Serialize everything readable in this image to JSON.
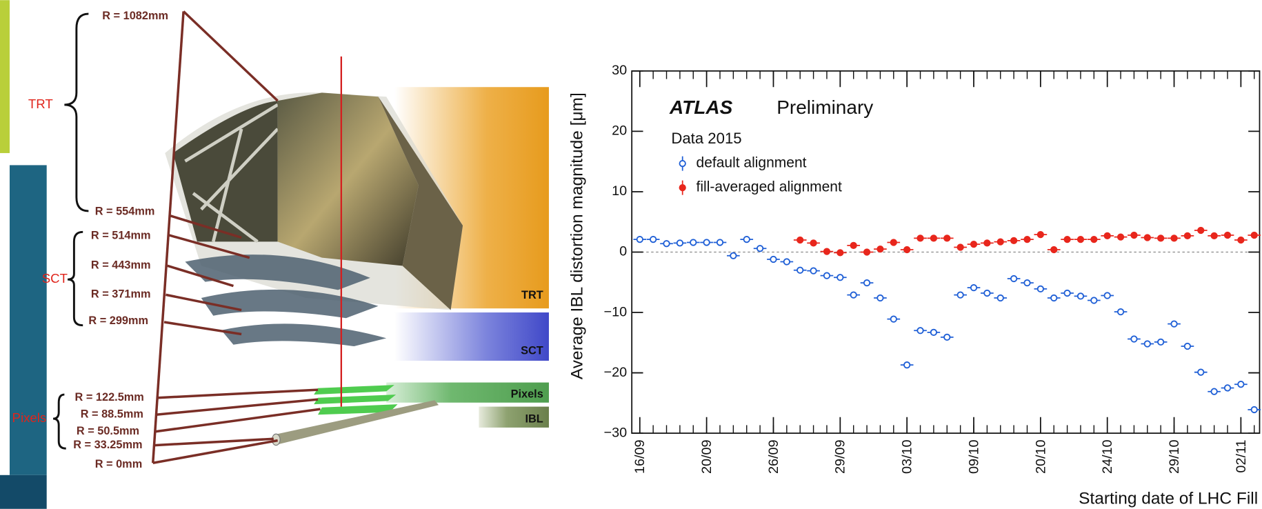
{
  "diagram": {
    "radii": [
      "R = 1082mm",
      "R = 554mm",
      "R = 514mm",
      "R = 443mm",
      "R = 371mm",
      "R = 299mm",
      "R = 122.5mm",
      "R = 88.5mm",
      "R = 50.5mm",
      "R = 33.25mm",
      "R = 0mm"
    ],
    "groups": [
      "TRT",
      "SCT",
      "Pixels"
    ],
    "bands": [
      "TRT",
      "SCT",
      "Pixels",
      "IBL"
    ]
  },
  "chart_data": {
    "type": "scatter",
    "annotations": [
      "ATLAS",
      "Preliminary",
      "Data 2015"
    ],
    "y_label": "Average IBL distortion magnitude [μm]",
    "x_label": "Starting date of LHC Fill",
    "xlim": [
      -0.6,
      46.4
    ],
    "xticks": [
      {
        "value": 0,
        "label": "16/09"
      },
      {
        "value": 5,
        "label": "20/09"
      },
      {
        "value": 10,
        "label": "26/09"
      },
      {
        "value": 15,
        "label": "29/09"
      },
      {
        "value": 20,
        "label": "03/10"
      },
      {
        "value": 25,
        "label": "09/10"
      },
      {
        "value": 30,
        "label": "20/10"
      },
      {
        "value": 35,
        "label": "24/10"
      },
      {
        "value": 40,
        "label": "29/10"
      },
      {
        "value": 45,
        "label": "02/11"
      }
    ],
    "ylim": [
      -30,
      30
    ],
    "yticks": [
      {
        "value": -30,
        "label": "−30"
      },
      {
        "value": -20,
        "label": "−20"
      },
      {
        "value": -10,
        "label": "−10"
      },
      0,
      10,
      20,
      30
    ],
    "series": [
      {
        "name": "default alignment",
        "color": "#1f5fd6",
        "filled": false,
        "x": [
          0,
          1,
          2,
          3,
          4,
          5,
          6,
          7,
          8,
          9,
          10,
          11,
          12,
          13,
          14,
          15,
          16,
          17,
          18,
          19,
          20,
          21,
          22,
          23,
          24,
          25,
          26,
          27,
          28,
          29,
          30,
          31,
          32,
          33,
          34,
          35,
          36,
          37,
          38,
          39,
          40,
          41,
          42,
          43,
          44,
          45,
          46
        ],
        "values": [
          2.1,
          2.1,
          1.4,
          1.5,
          1.6,
          1.6,
          1.6,
          -0.6,
          2.1,
          0.6,
          -1.2,
          -1.6,
          -3.0,
          -3.1,
          -3.9,
          -4.2,
          -7.1,
          -5.1,
          -7.6,
          -11.1,
          -18.7,
          -13.0,
          -13.3,
          -14.1,
          -7.1,
          -5.9,
          -6.8,
          -7.6,
          -4.4,
          -5.1,
          -6.1,
          -7.6,
          -6.8,
          -7.3,
          -8.0,
          -7.2,
          -9.9,
          -14.4,
          -15.2,
          -14.9,
          -11.9,
          -15.6,
          -19.9,
          -23.1,
          -22.5,
          -21.9,
          -26.1
        ]
      },
      {
        "name": "fill-averaged alignment",
        "color": "#e8261c",
        "filled": true,
        "x": [
          12,
          13,
          14,
          15,
          16,
          17,
          18,
          19,
          20,
          21,
          22,
          23,
          24,
          25,
          26,
          27,
          28,
          29,
          30,
          31,
          32,
          33,
          34,
          35,
          36,
          37,
          38,
          39,
          40,
          41,
          42,
          43,
          44,
          45,
          46
        ],
        "values": [
          2.0,
          1.5,
          0.1,
          -0.1,
          1.1,
          0.0,
          0.5,
          1.6,
          0.4,
          2.3,
          2.3,
          2.3,
          0.8,
          1.3,
          1.5,
          1.7,
          1.9,
          2.1,
          2.9,
          0.4,
          2.1,
          2.1,
          2.1,
          2.7,
          2.5,
          2.8,
          2.4,
          2.3,
          2.3,
          2.7,
          3.6,
          2.7,
          2.8,
          2.0,
          2.8
        ]
      }
    ]
  }
}
